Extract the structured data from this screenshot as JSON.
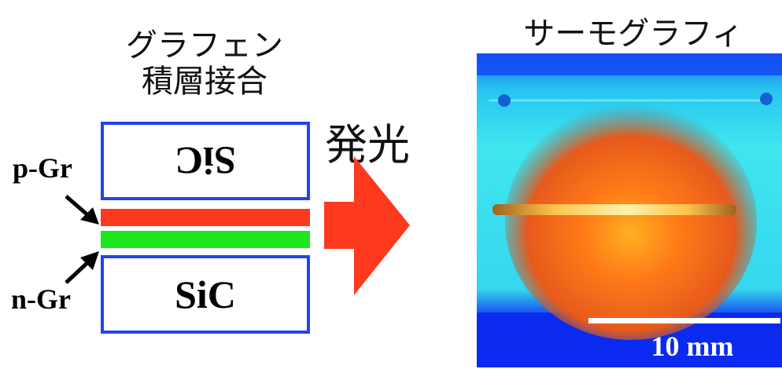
{
  "left_title": {
    "line1": "グラフェン",
    "line2": "積層接合"
  },
  "emission_label": "発光",
  "right_title": "サーモグラフィ",
  "sic_top_label": "SiC",
  "sic_bottom_label": "SiC",
  "p_layer_label": "p-Gr",
  "n_layer_label": "n-Gr",
  "scale_bar_label": "10 mm",
  "colors": {
    "box_border": "#2143f0",
    "p_layer": "#fd3a1d",
    "n_layer": "#1fe61f",
    "emission_arrow": "#fd3a1d"
  }
}
